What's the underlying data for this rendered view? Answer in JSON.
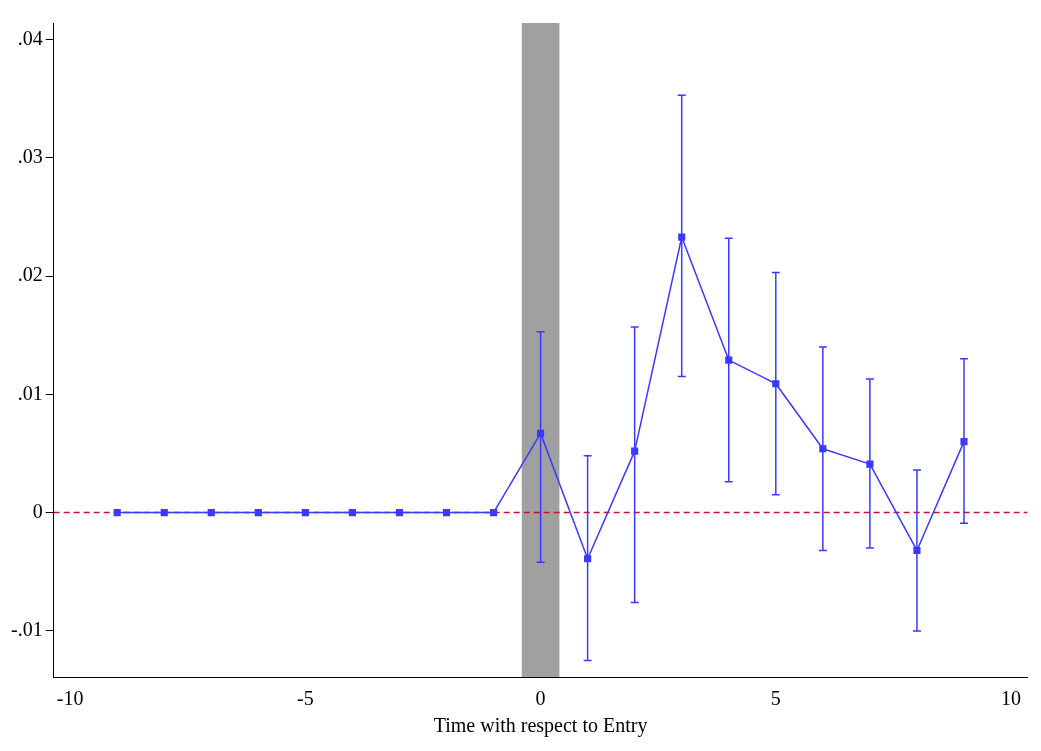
{
  "chart_data": {
    "type": "line",
    "xlabel": "Time with respect to Entry",
    "x": [
      -9,
      -8,
      -7,
      -6,
      -5,
      -4,
      -3,
      -2,
      -1,
      0,
      1,
      2,
      3,
      4,
      5,
      6,
      7,
      8,
      9
    ],
    "series": [
      {
        "color": "#3a3aff",
        "values": [
          0,
          0,
          0,
          0,
          0,
          0,
          0,
          0,
          0,
          0.0067,
          -0.0039,
          0.0052,
          0.0233,
          0.0129,
          0.0109,
          0.0054,
          0.0041,
          -0.0032,
          0.006
        ],
        "errors": [
          null,
          null,
          null,
          null,
          null,
          null,
          null,
          null,
          null,
          [
            -0.0042,
            0.0153
          ],
          [
            -0.0125,
            0.0048
          ],
          [
            -0.0076,
            0.0157
          ],
          [
            0.0115,
            0.0353
          ],
          [
            0.0026,
            0.0232
          ],
          [
            0.0015,
            0.0203
          ],
          [
            -0.0032,
            0.014
          ],
          [
            -0.003,
            0.0113
          ],
          [
            -0.01,
            0.0036
          ],
          [
            -0.0009,
            0.013
          ]
        ]
      }
    ],
    "xlim": [
      -10.35,
      10.35
    ],
    "xticks": [
      -10,
      -5,
      0,
      5,
      10
    ],
    "ylim": [
      -0.0139,
      0.0414
    ],
    "yticks": [
      {
        "value": -0.01,
        "label": "-.01"
      },
      0,
      {
        "value": 0.01,
        "label": ".01"
      },
      {
        "value": 0.02,
        "label": ".02"
      },
      {
        "value": 0.03,
        "label": ".03"
      },
      {
        "value": 0.04,
        "label": ".04"
      }
    ],
    "ref_lines": [
      {
        "axis": "y",
        "value": 0,
        "color": "#c8102e",
        "line_style": "dashed"
      }
    ],
    "bands": [
      {
        "axis": "x",
        "from": -0.4,
        "to": 0.4,
        "color": "#a0a0a0"
      }
    ],
    "grid": false,
    "legend": false,
    "marker": "square",
    "line_style": "solid"
  }
}
